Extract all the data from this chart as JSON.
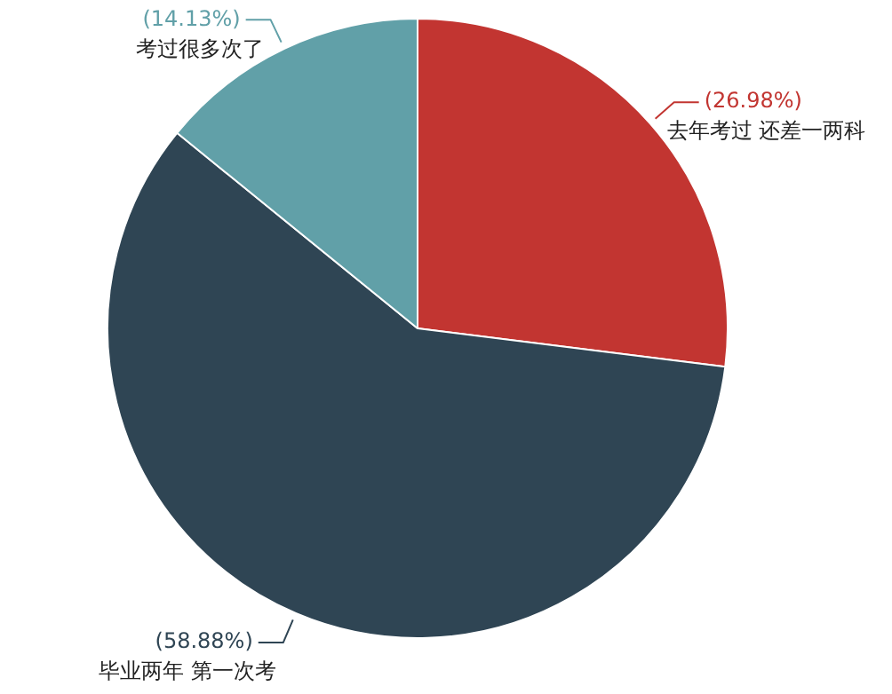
{
  "chart_data": {
    "type": "pie",
    "categories": [
      "去年考过 还差一两科",
      "毕业两年 第一次考",
      "考过很多次了"
    ],
    "values": [
      26.98,
      58.88,
      14.13
    ],
    "value_labels": [
      "(26.98%)",
      "(58.88%)",
      "(14.13%)"
    ],
    "colors": [
      "#c23531",
      "#2f4554",
      "#61a0a8"
    ],
    "legend": false
  }
}
